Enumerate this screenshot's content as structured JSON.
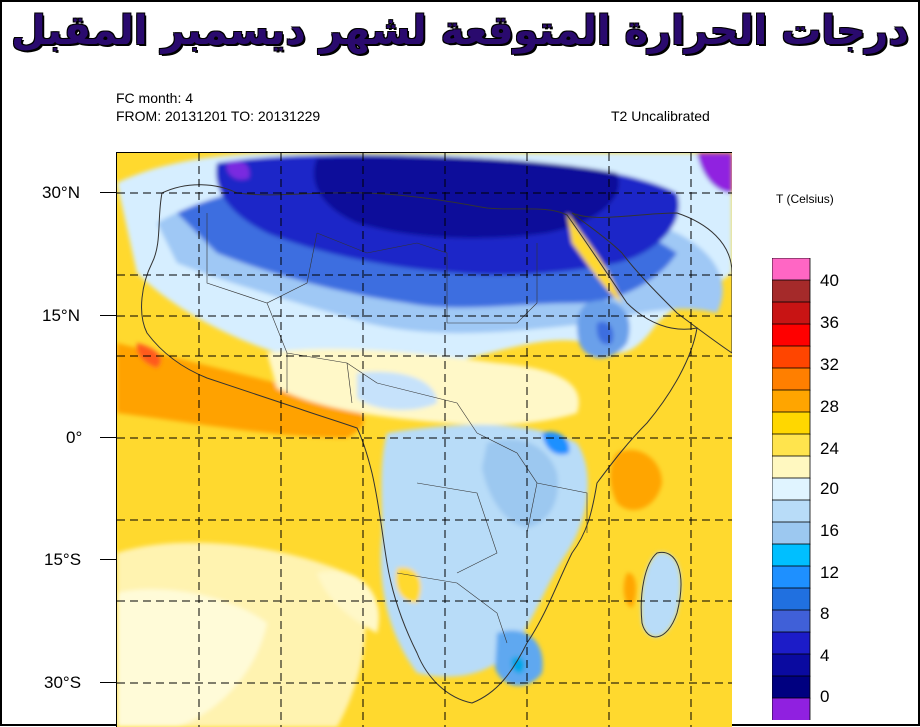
{
  "title": "درجات الحرارة المتوقعة لشهر ديسمبر المقبل",
  "header": {
    "fc_month": "FC month: 4",
    "from_to": "FROM: 20131201   TO: 20131229",
    "calibration": "T2 Uncalibrated"
  },
  "axis": {
    "lat_labels": [
      "30°N",
      "15°N",
      "0°",
      "15°S",
      "30°S"
    ]
  },
  "colorbar": {
    "title": "T (Celsius)",
    "labels": [
      "40",
      "36",
      "32",
      "28",
      "24",
      "20",
      "16",
      "12",
      "8",
      "4",
      "0"
    ],
    "colors": [
      "#ff66c4",
      "#a52a2a",
      "#c81414",
      "#ff0000",
      "#ff4500",
      "#ff7f00",
      "#ffa500",
      "#ffd700",
      "#ffe44d",
      "#fff8c0",
      "#e0f4ff",
      "#b8dcf8",
      "#9cc8f0",
      "#00bfff",
      "#1e90ff",
      "#2070e0",
      "#4060d8",
      "#1c1cc8",
      "#0a0aa0",
      "#000080",
      "#9020e0"
    ]
  }
}
